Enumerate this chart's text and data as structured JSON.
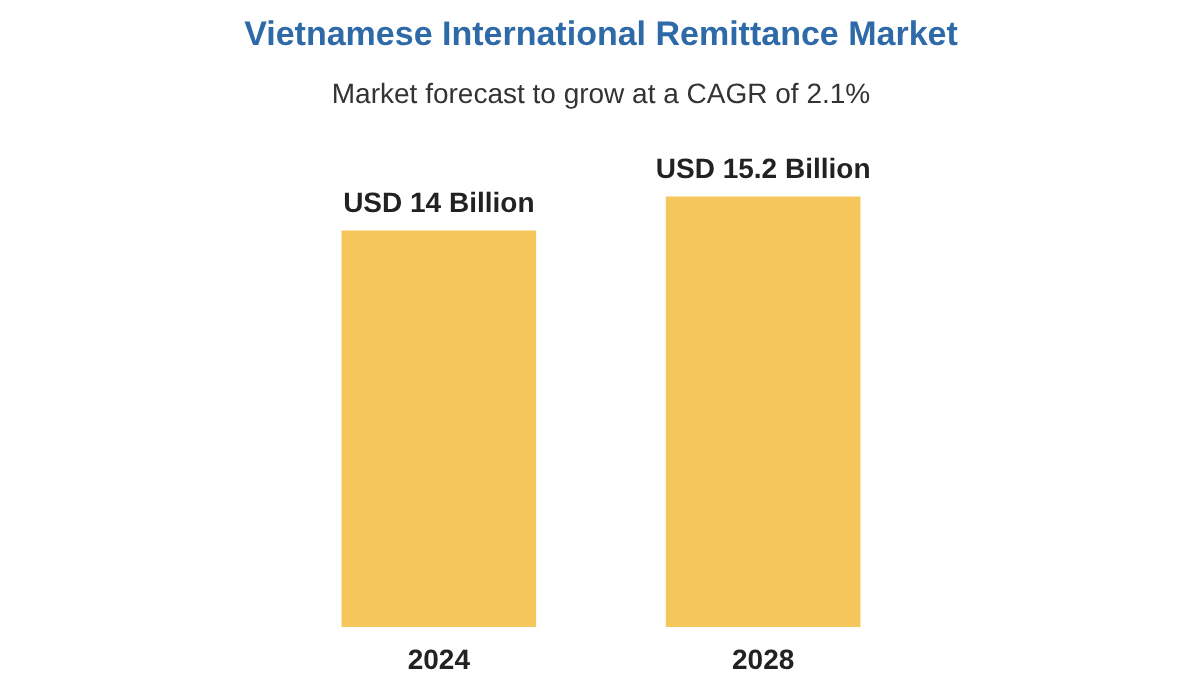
{
  "chart_data": {
    "type": "bar",
    "title": "Vietnamese International Remittance Market",
    "subtitle": "Market forecast to grow at a CAGR of 2.1%",
    "categories": [
      "2024",
      "2028"
    ],
    "tick_labels": "x",
    "values": [
      14,
      15.2
    ],
    "colors": [
      "#f5c65c",
      "#f5c65c"
    ],
    "value_labels": [
      "USD 14 Billion",
      "USD 15.2 Billion"
    ],
    "grid": false
  }
}
